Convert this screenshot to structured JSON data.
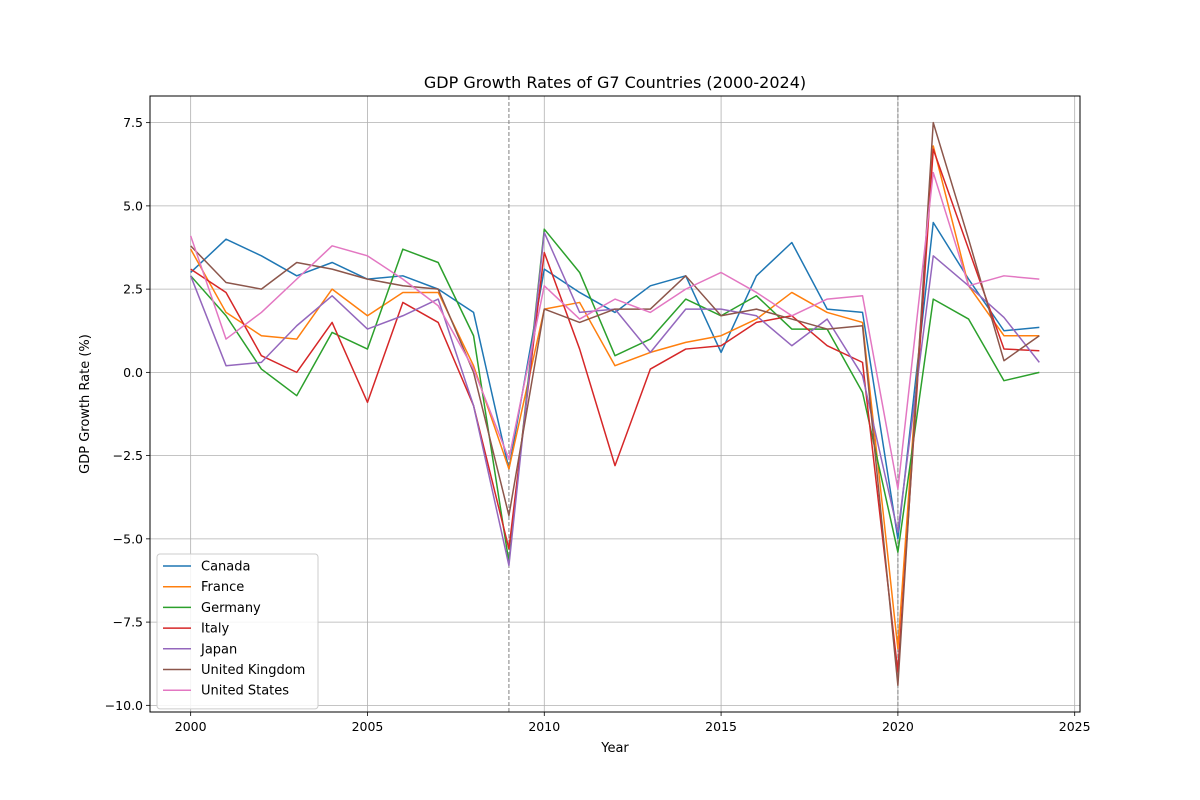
{
  "chart_data": {
    "type": "line",
    "title": "GDP Growth Rates of G7 Countries (2000-2024)",
    "xlabel": "Year",
    "ylabel": "GDP Growth Rate (%)",
    "xlim": [
      1998.85,
      2025.15
    ],
    "ylim": [
      -10.2,
      8.3
    ],
    "grid": true,
    "legend_position": "lower-left",
    "xticks": [
      2000,
      2005,
      2010,
      2015,
      2020,
      2025
    ],
    "xtick_labels": [
      "2000",
      "2005",
      "2010",
      "2015",
      "2020",
      "2025"
    ],
    "yticks": [
      7.5,
      5.0,
      2.5,
      0.0,
      -2.5,
      -5.0,
      -7.5,
      -10.0
    ],
    "ytick_labels": [
      "7.5",
      "5.0",
      "2.5",
      "0.0",
      "−2.5",
      "−5.0",
      "−7.5",
      "−10.0"
    ],
    "reference_lines": [
      2009,
      2020
    ],
    "x": [
      2000,
      2001,
      2002,
      2003,
      2004,
      2005,
      2006,
      2007,
      2008,
      2009,
      2010,
      2011,
      2012,
      2013,
      2014,
      2015,
      2016,
      2017,
      2018,
      2019,
      2020,
      2021,
      2022,
      2023,
      2024
    ],
    "series": [
      {
        "name": "Canada",
        "color": "#1f77b4",
        "values": [
          3.0,
          4.0,
          3.5,
          2.9,
          3.3,
          2.8,
          2.9,
          2.5,
          1.8,
          -2.9,
          3.1,
          2.4,
          1.8,
          2.6,
          2.9,
          0.6,
          2.9,
          3.9,
          1.9,
          1.8,
          -5.0,
          4.5,
          2.8,
          1.25,
          1.35
        ]
      },
      {
        "name": "France",
        "color": "#ff7f0e",
        "values": [
          3.7,
          1.8,
          1.1,
          1.0,
          2.5,
          1.7,
          2.4,
          2.4,
          0.2,
          -2.9,
          1.9,
          2.1,
          0.2,
          0.6,
          0.9,
          1.1,
          1.6,
          2.4,
          1.8,
          1.5,
          -8.3,
          6.8,
          2.6,
          1.1,
          1.1
        ]
      },
      {
        "name": "Germany",
        "color": "#2ca02c",
        "values": [
          2.9,
          1.7,
          0.1,
          -0.7,
          1.2,
          0.7,
          3.7,
          3.3,
          1.1,
          -5.7,
          4.3,
          3.0,
          0.5,
          1.0,
          2.2,
          1.7,
          2.3,
          1.3,
          1.3,
          -0.6,
          -5.4,
          2.2,
          1.6,
          -0.25,
          0.0
        ]
      },
      {
        "name": "Italy",
        "color": "#d62728",
        "values": [
          3.1,
          2.4,
          0.5,
          0.0,
          1.5,
          -0.9,
          2.1,
          1.5,
          -1.0,
          -5.3,
          3.6,
          0.7,
          -2.8,
          0.1,
          0.7,
          0.8,
          1.5,
          1.7,
          0.8,
          0.3,
          -9.0,
          6.7,
          3.7,
          0.7,
          0.65
        ]
      },
      {
        "name": "Japan",
        "color": "#9467bd",
        "values": [
          2.9,
          0.2,
          0.3,
          1.4,
          2.3,
          1.3,
          1.7,
          2.2,
          -1.0,
          -5.8,
          4.2,
          1.8,
          1.9,
          0.6,
          1.9,
          1.9,
          1.7,
          0.8,
          1.6,
          -0.1,
          -4.8,
          3.5,
          2.6,
          1.65,
          0.3
        ]
      },
      {
        "name": "United Kingdom",
        "color": "#8c564b",
        "values": [
          3.8,
          2.7,
          2.5,
          3.3,
          3.1,
          2.8,
          2.6,
          2.5,
          0.0,
          -4.3,
          1.9,
          1.5,
          1.9,
          1.9,
          2.9,
          1.7,
          1.9,
          1.6,
          1.3,
          1.4,
          -9.4,
          7.5,
          4.0,
          0.35,
          1.1
        ]
      },
      {
        "name": "United States",
        "color": "#e377c2",
        "values": [
          4.1,
          1.0,
          1.8,
          2.8,
          3.8,
          3.5,
          2.8,
          2.0,
          0.1,
          -2.6,
          2.6,
          1.6,
          2.2,
          1.8,
          2.5,
          3.0,
          2.4,
          1.7,
          2.2,
          2.3,
          -3.5,
          6.0,
          2.6,
          2.9,
          2.8
        ]
      }
    ]
  }
}
